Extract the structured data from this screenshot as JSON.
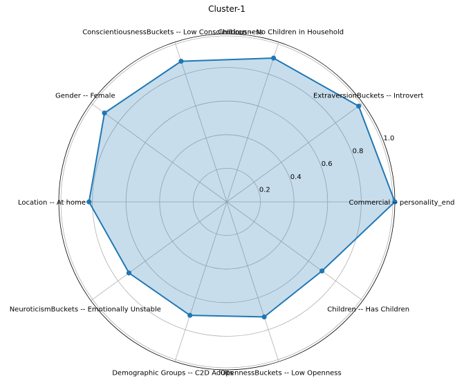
{
  "chart_data": {
    "type": "radar",
    "title": "Cluster-1",
    "categories": [
      "Commercial -- personality_end",
      "ExtraversionBuckets -- Introvert",
      "Children -- No Children in Household",
      "ConscientiousnessBuckets -- Low Conscientiousness",
      "Gender -- Female",
      "Location -- At home",
      "NeuroticismBuckets -- Emotionally Unstable",
      "Demographic Groups -- C2D Adults",
      "OpennessBuckets -- Low Openness",
      "Children -- Has Children"
    ],
    "series": [
      {
        "values": [
          1.0,
          0.97,
          0.9,
          0.88,
          0.9,
          0.82,
          0.72,
          0.71,
          0.72,
          0.7
        ],
        "color": "#1f77b4"
      }
    ],
    "rlim": [
      0,
      1.0
    ],
    "rticks": [
      "0.2",
      "0.4",
      "0.6",
      "0.8",
      "1.0"
    ],
    "grid": true
  }
}
